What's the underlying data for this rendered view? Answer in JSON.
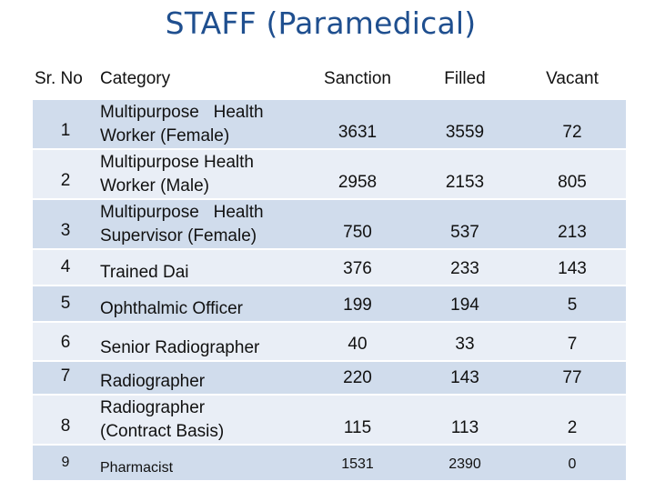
{
  "title": "STAFF (Paramedical)",
  "table": {
    "headers": {
      "sr": "Sr. No",
      "category": "Category",
      "sanction": "Sanction",
      "filled": "Filled",
      "vacant": "Vacant"
    },
    "rows": [
      {
        "sr": "1",
        "category": [
          "Multipurpose   Health",
          "Worker (Female)"
        ],
        "sanction": "3631",
        "filled": "3559",
        "vacant": "72"
      },
      {
        "sr": "2",
        "category": [
          "Multipurpose Health",
          "Worker (Male)"
        ],
        "sanction": "2958",
        "filled": "2153",
        "vacant": "805"
      },
      {
        "sr": "3",
        "category": [
          "Multipurpose   Health",
          "Supervisor (Female)"
        ],
        "sanction": "750",
        "filled": "537",
        "vacant": "213"
      },
      {
        "sr": "4",
        "category": [
          "Trained Dai"
        ],
        "sanction": "376",
        "filled": "233",
        "vacant": "143"
      },
      {
        "sr": "5",
        "category": [
          "Ophthalmic Officer"
        ],
        "sanction": "199",
        "filled": "194",
        "vacant": "5"
      },
      {
        "sr": "6",
        "category": [
          "Senior Radiographer"
        ],
        "sanction": "40",
        "filled": "33",
        "vacant": "7"
      },
      {
        "sr": "7",
        "category": [
          "Radiographer"
        ],
        "sanction": "220",
        "filled": "143",
        "vacant": "77"
      },
      {
        "sr": "8",
        "category": [
          "Radiographer",
          "(Contract Basis)"
        ],
        "sanction": "115",
        "filled": "113",
        "vacant": "2"
      },
      {
        "sr": "9",
        "category": [
          "Pharmacist"
        ],
        "sanction": "1531",
        "filled": "2390",
        "vacant": "0"
      }
    ]
  }
}
